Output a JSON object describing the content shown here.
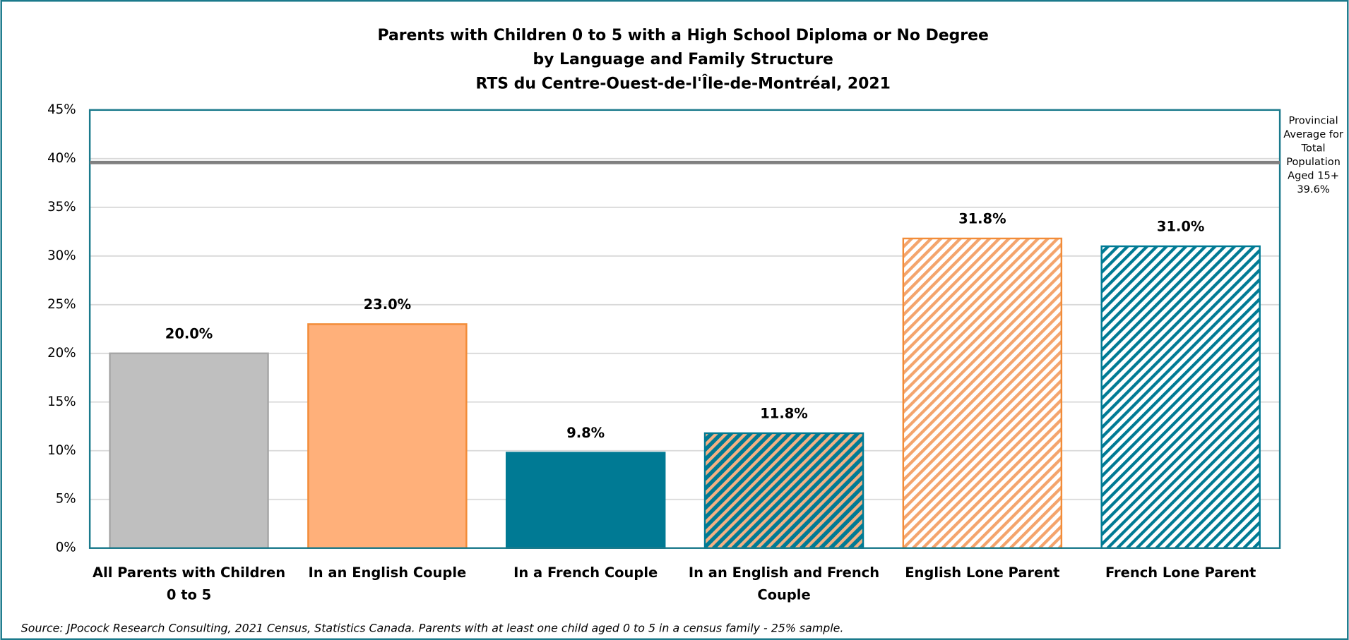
{
  "chart_data": {
    "type": "bar",
    "title": [
      "Parents with Children 0 to 5 with a High School Diploma or No Degree",
      "by Language and Family Structure",
      "RTS du Centre-Ouest-de-l'Île-de-Montréal, 2021"
    ],
    "categories": [
      "All Parents with Children 0 to 5",
      "In an English Couple",
      "In a French Couple",
      "In an English and French Couple",
      "English Lone Parent",
      "French Lone Parent"
    ],
    "values": [
      20.0,
      23.0,
      9.8,
      11.8,
      31.8,
      31.0
    ],
    "value_labels": [
      "20.0%",
      "23.0%",
      "9.8%",
      "11.8%",
      "31.8%",
      "31.0%"
    ],
    "bar_styles": [
      {
        "fill": "#bfbfbf",
        "edge": "#a6a6a6"
      },
      {
        "fill": "#ffb07a",
        "edge": "#f28c38"
      },
      {
        "fill": "#007a94",
        "edge": "#007a94"
      },
      {
        "fill": "#007a94",
        "edge": "#007a94",
        "stripe": "#f4b183"
      },
      {
        "fill": "#ffffff",
        "edge": "#f28c38",
        "stripe": "#f4a46c"
      },
      {
        "fill": "#ffffff",
        "edge": "#007a94",
        "stripe": "#007a94"
      }
    ],
    "ylim": [
      0,
      45
    ],
    "yticks": [
      {
        "value": 0,
        "label": "0%"
      },
      {
        "value": 5,
        "label": "5%"
      },
      {
        "value": 10,
        "label": "10%"
      },
      {
        "value": 15,
        "label": "15%"
      },
      {
        "value": 20,
        "label": "20%"
      },
      {
        "value": 25,
        "label": "25%"
      },
      {
        "value": 30,
        "label": "30%"
      },
      {
        "value": 35,
        "label": "35%"
      },
      {
        "value": 40,
        "label": "40%"
      },
      {
        "value": 45,
        "label": "45%"
      }
    ],
    "grid": true,
    "reference_line": {
      "value": 39.6,
      "value_label": "39.6%",
      "color": "#808080",
      "label": [
        "Provincial",
        "Average for",
        "Total",
        "Population",
        "Aged 15+"
      ]
    },
    "source": "Source: JPocock Research Consulting, 2021 Census, Statistics Canada. Parents with at least one child aged 0 to 5 in a census family - 25% sample."
  }
}
